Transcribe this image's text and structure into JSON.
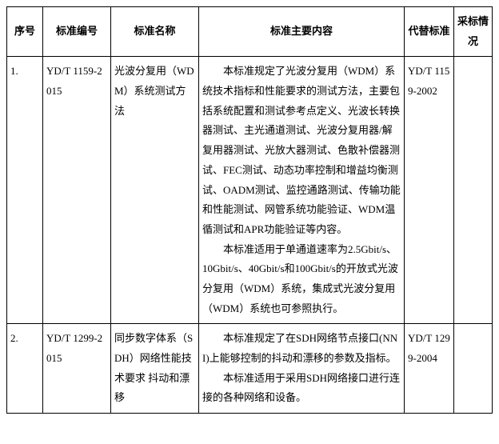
{
  "headers": {
    "seq": "序号",
    "code": "标准编号",
    "name": "标准名称",
    "content": "标准主要内容",
    "replace": "代替标准",
    "adopt": "采标情况"
  },
  "rows": [
    {
      "seq": "1.",
      "code": "YD/T 1159-2015",
      "name": "光波分复用（WDM）系统测试方法",
      "content_p1": "本标准规定了光波分复用（WDM）系统技术指标和性能要求的测试方法，主要包括系统配置和测试参考点定义、光波长转换器测试、主光通道测试、光波分复用器/解复用器测试、光放大器测试、色散补偿器测试、FEC测试、动态功率控制和增益均衡测试、OADM测试、监控通路测试、传输功能和性能测试、网管系统功能验证、WDM温循测试和APR功能验证等内容。",
      "content_p2": "本标准适用于单通道速率为2.5Gbit/s、10Gbit/s、40Gbit/s和100Gbit/s的开放式光波分复用（WDM）系统，集成式光波分复用（WDM）系统也可参照执行。",
      "replace": "YD/T 1159-2002",
      "adopt": ""
    },
    {
      "seq": "2.",
      "code": "YD/T 1299-2015",
      "name": "同步数字体系（SDH）网络性能技术要求 抖动和漂移",
      "content_p1": "本标准规定了在SDH网络节点接口(NNI)上能够控制的抖动和漂移的参数及指标。",
      "content_p2": "本标准适用于采用SDH网络接口进行连接的各种网络和设备。",
      "replace": "YD/T 1299-2004",
      "adopt": ""
    }
  ]
}
